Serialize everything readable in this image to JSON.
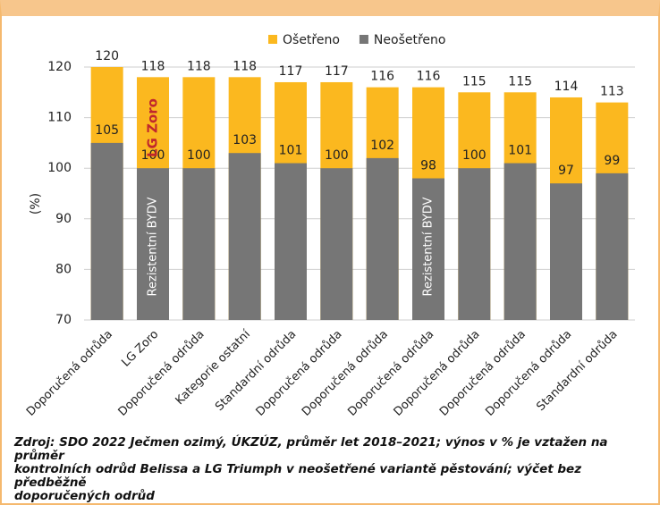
{
  "chart_data": {
    "type": "overlap_bar",
    "y_label": "(%)",
    "categories": [
      "Doporučená odrůda",
      "LG Zoro",
      "Doporučená odrůda",
      "Kategorie ostatní",
      "Standardní odrůda",
      "Doporučená odrůda",
      "Doporučená odrůda",
      "Doporučená odrůda",
      "Doporučená odrůda",
      "Doporučená odrůda",
      "Doporučená odrůda",
      "Standardní odrůda"
    ],
    "series": [
      {
        "name": "Ošetřeno",
        "color": "#fbb81f",
        "values": [
          120,
          118,
          118,
          118,
          117,
          117,
          116,
          116,
          115,
          115,
          114,
          113
        ]
      },
      {
        "name": "Neošetřeno",
        "color": "#767676",
        "values": [
          105,
          100,
          100,
          103,
          101,
          100,
          102,
          98,
          100,
          101,
          97,
          99
        ]
      }
    ],
    "ylim": [
      70,
      120
    ],
    "yticks": [
      70,
      80,
      90,
      100,
      110,
      120
    ],
    "grid": true,
    "annotations": [
      "LG Zoro",
      "Rezistentní BYDV",
      "Rezistentní BYDV"
    ],
    "source": [
      "Zdroj: SDO 2022 Ječmen ozimý, ÚKZÚZ, průměr let 2018–2021; výnos v % je vztažen na průměr",
      "kontrolních odrůd Belissa a LG Triumph v neošetřené variantě pěstování; výčet bez předběžně",
      "doporučených odrůd"
    ]
  }
}
